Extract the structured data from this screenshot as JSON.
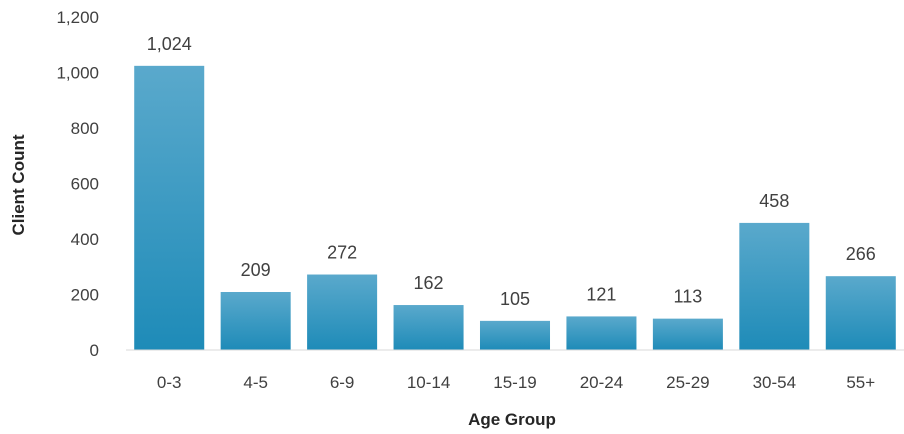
{
  "chart_data": {
    "type": "bar",
    "categories": [
      "0-3",
      "4-5",
      "6-9",
      "10-14",
      "15-19",
      "20-24",
      "25-29",
      "30-54",
      "55+"
    ],
    "values": [
      1024,
      209,
      272,
      162,
      105,
      121,
      113,
      458,
      266
    ],
    "value_labels": [
      "1,024",
      "209",
      "272",
      "162",
      "105",
      "121",
      "113",
      "458",
      "266"
    ],
    "xlabel": "Age Group",
    "ylabel": "Client Count",
    "ylim": [
      0,
      1200
    ],
    "yticks": [
      0,
      200,
      400,
      600,
      800,
      1000,
      1200
    ],
    "ytick_labels": [
      "0",
      "200",
      "400",
      "600",
      "800",
      "1,000",
      "1,200"
    ],
    "grid": false,
    "legend": "none",
    "colors": {
      "bar_top": "#5aa9cc",
      "bar_bottom": "#1e8bb8",
      "axis": "#d9d9d9"
    }
  }
}
